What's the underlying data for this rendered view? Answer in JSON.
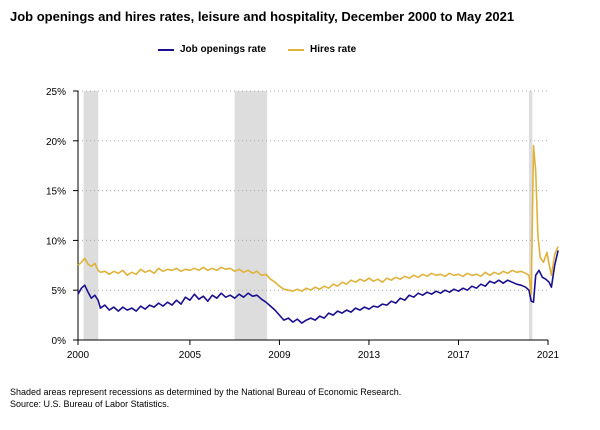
{
  "colors": {
    "job_openings": "#1a0f8f",
    "hires": "#e0b23c",
    "recession": "#dddddd",
    "grid": "#aaaaaa",
    "axis": "#000000"
  },
  "footnotes": {
    "line1": "Shaded areas represent recessions as determined by the National Bureau of Economic Research.",
    "line2": "Source: U.S. Bureau of Labor Statistics."
  },
  "chart_data": {
    "type": "line",
    "title": "Job openings and hires rates, leisure and hospitality, December 2000 to May 2021",
    "xlabel": "",
    "ylabel": "",
    "xlim": [
      2000,
      2021
    ],
    "ylim": [
      0,
      25
    ],
    "x_ticks": [
      2000,
      2005,
      2009,
      2013,
      2017,
      2021
    ],
    "y_ticks": [
      0,
      5,
      10,
      15,
      20,
      25
    ],
    "y_tick_labels": [
      "0%",
      "5%",
      "10%",
      "15%",
      "20%",
      "25%"
    ],
    "grid": "horizontal dotted",
    "legend": "top-center",
    "recessions": [
      [
        2000.25,
        2000.9
      ],
      [
        2007.0,
        2008.45
      ],
      [
        2020.15,
        2020.3
      ]
    ],
    "series": [
      {
        "name": "Job openings rate",
        "color": "#1a0f8f",
        "points": [
          [
            2000.0,
            4.6
          ],
          [
            2000.15,
            5.2
          ],
          [
            2000.3,
            5.5
          ],
          [
            2000.45,
            4.8
          ],
          [
            2000.6,
            4.2
          ],
          [
            2000.75,
            4.5
          ],
          [
            2000.9,
            4.0
          ],
          [
            2001.0,
            3.2
          ],
          [
            2001.2,
            3.5
          ],
          [
            2001.4,
            3.0
          ],
          [
            2001.6,
            3.3
          ],
          [
            2001.8,
            2.9
          ],
          [
            2002.0,
            3.3
          ],
          [
            2002.2,
            3.0
          ],
          [
            2002.4,
            3.2
          ],
          [
            2002.6,
            2.9
          ],
          [
            2002.8,
            3.4
          ],
          [
            2003.0,
            3.1
          ],
          [
            2003.2,
            3.5
          ],
          [
            2003.4,
            3.3
          ],
          [
            2003.6,
            3.7
          ],
          [
            2003.8,
            3.4
          ],
          [
            2004.0,
            3.8
          ],
          [
            2004.2,
            3.5
          ],
          [
            2004.4,
            4.0
          ],
          [
            2004.6,
            3.6
          ],
          [
            2004.8,
            4.3
          ],
          [
            2005.0,
            4.0
          ],
          [
            2005.2,
            4.6
          ],
          [
            2005.4,
            4.1
          ],
          [
            2005.6,
            4.4
          ],
          [
            2005.8,
            3.9
          ],
          [
            2006.0,
            4.5
          ],
          [
            2006.2,
            4.2
          ],
          [
            2006.4,
            4.7
          ],
          [
            2006.6,
            4.3
          ],
          [
            2006.8,
            4.5
          ],
          [
            2007.0,
            4.2
          ],
          [
            2007.2,
            4.6
          ],
          [
            2007.4,
            4.3
          ],
          [
            2007.6,
            4.7
          ],
          [
            2007.8,
            4.4
          ],
          [
            2008.0,
            4.5
          ],
          [
            2008.2,
            4.1
          ],
          [
            2008.4,
            3.8
          ],
          [
            2008.6,
            3.4
          ],
          [
            2008.8,
            3.0
          ],
          [
            2009.0,
            2.5
          ],
          [
            2009.2,
            2.0
          ],
          [
            2009.4,
            2.2
          ],
          [
            2009.6,
            1.8
          ],
          [
            2009.8,
            2.1
          ],
          [
            2010.0,
            1.7
          ],
          [
            2010.2,
            2.0
          ],
          [
            2010.4,
            2.2
          ],
          [
            2010.6,
            2.0
          ],
          [
            2010.8,
            2.4
          ],
          [
            2011.0,
            2.2
          ],
          [
            2011.2,
            2.7
          ],
          [
            2011.4,
            2.5
          ],
          [
            2011.6,
            2.9
          ],
          [
            2011.8,
            2.7
          ],
          [
            2012.0,
            3.0
          ],
          [
            2012.2,
            2.8
          ],
          [
            2012.4,
            3.2
          ],
          [
            2012.6,
            3.0
          ],
          [
            2012.8,
            3.3
          ],
          [
            2013.0,
            3.1
          ],
          [
            2013.2,
            3.4
          ],
          [
            2013.4,
            3.3
          ],
          [
            2013.6,
            3.6
          ],
          [
            2013.8,
            3.5
          ],
          [
            2014.0,
            3.9
          ],
          [
            2014.2,
            3.7
          ],
          [
            2014.4,
            4.2
          ],
          [
            2014.6,
            4.0
          ],
          [
            2014.8,
            4.5
          ],
          [
            2015.0,
            4.3
          ],
          [
            2015.2,
            4.7
          ],
          [
            2015.4,
            4.5
          ],
          [
            2015.6,
            4.8
          ],
          [
            2015.8,
            4.6
          ],
          [
            2016.0,
            4.9
          ],
          [
            2016.2,
            4.7
          ],
          [
            2016.4,
            5.0
          ],
          [
            2016.6,
            4.8
          ],
          [
            2016.8,
            5.1
          ],
          [
            2017.0,
            4.9
          ],
          [
            2017.2,
            5.2
          ],
          [
            2017.4,
            5.0
          ],
          [
            2017.6,
            5.4
          ],
          [
            2017.8,
            5.2
          ],
          [
            2018.0,
            5.6
          ],
          [
            2018.2,
            5.4
          ],
          [
            2018.4,
            5.9
          ],
          [
            2018.6,
            5.7
          ],
          [
            2018.8,
            6.0
          ],
          [
            2019.0,
            5.7
          ],
          [
            2019.2,
            6.0
          ],
          [
            2019.4,
            5.8
          ],
          [
            2019.6,
            5.6
          ],
          [
            2019.8,
            5.5
          ],
          [
            2020.0,
            5.3
          ],
          [
            2020.15,
            5.0
          ],
          [
            2020.25,
            3.9
          ],
          [
            2020.35,
            3.8
          ],
          [
            2020.45,
            6.5
          ],
          [
            2020.6,
            7.0
          ],
          [
            2020.75,
            6.3
          ],
          [
            2020.9,
            6.1
          ],
          [
            2021.05,
            5.8
          ],
          [
            2021.15,
            5.3
          ],
          [
            2021.3,
            7.5
          ],
          [
            2021.45,
            9.0
          ]
        ]
      },
      {
        "name": "Hires rate",
        "color": "#e0b23c",
        "points": [
          [
            2000.0,
            7.5
          ],
          [
            2000.15,
            7.8
          ],
          [
            2000.3,
            8.2
          ],
          [
            2000.45,
            7.6
          ],
          [
            2000.6,
            7.4
          ],
          [
            2000.75,
            7.7
          ],
          [
            2000.9,
            7.0
          ],
          [
            2001.0,
            6.8
          ],
          [
            2001.2,
            6.9
          ],
          [
            2001.4,
            6.6
          ],
          [
            2001.6,
            6.9
          ],
          [
            2001.8,
            6.7
          ],
          [
            2002.0,
            7.0
          ],
          [
            2002.2,
            6.5
          ],
          [
            2002.4,
            6.8
          ],
          [
            2002.6,
            6.6
          ],
          [
            2002.8,
            7.1
          ],
          [
            2003.0,
            6.8
          ],
          [
            2003.2,
            7.0
          ],
          [
            2003.4,
            6.7
          ],
          [
            2003.6,
            7.2
          ],
          [
            2003.8,
            6.9
          ],
          [
            2004.0,
            7.1
          ],
          [
            2004.2,
            7.0
          ],
          [
            2004.4,
            7.2
          ],
          [
            2004.6,
            6.9
          ],
          [
            2004.8,
            7.1
          ],
          [
            2005.0,
            7.0
          ],
          [
            2005.2,
            7.2
          ],
          [
            2005.4,
            7.0
          ],
          [
            2005.6,
            7.3
          ],
          [
            2005.8,
            7.0
          ],
          [
            2006.0,
            7.2
          ],
          [
            2006.2,
            7.0
          ],
          [
            2006.4,
            7.3
          ],
          [
            2006.6,
            7.1
          ],
          [
            2006.8,
            7.2
          ],
          [
            2007.0,
            6.9
          ],
          [
            2007.2,
            7.1
          ],
          [
            2007.4,
            6.8
          ],
          [
            2007.6,
            7.0
          ],
          [
            2007.8,
            6.7
          ],
          [
            2008.0,
            6.9
          ],
          [
            2008.2,
            6.5
          ],
          [
            2008.4,
            6.6
          ],
          [
            2008.6,
            6.1
          ],
          [
            2008.8,
            5.8
          ],
          [
            2009.0,
            5.4
          ],
          [
            2009.2,
            5.1
          ],
          [
            2009.4,
            5.0
          ],
          [
            2009.6,
            4.9
          ],
          [
            2009.8,
            5.1
          ],
          [
            2010.0,
            4.9
          ],
          [
            2010.2,
            5.2
          ],
          [
            2010.4,
            5.0
          ],
          [
            2010.6,
            5.3
          ],
          [
            2010.8,
            5.1
          ],
          [
            2011.0,
            5.4
          ],
          [
            2011.2,
            5.2
          ],
          [
            2011.4,
            5.6
          ],
          [
            2011.6,
            5.4
          ],
          [
            2011.8,
            5.8
          ],
          [
            2012.0,
            5.6
          ],
          [
            2012.2,
            6.0
          ],
          [
            2012.4,
            5.8
          ],
          [
            2012.6,
            6.1
          ],
          [
            2012.8,
            5.9
          ],
          [
            2013.0,
            6.2
          ],
          [
            2013.2,
            5.9
          ],
          [
            2013.4,
            6.1
          ],
          [
            2013.6,
            5.8
          ],
          [
            2013.8,
            6.2
          ],
          [
            2014.0,
            6.0
          ],
          [
            2014.2,
            6.3
          ],
          [
            2014.4,
            6.1
          ],
          [
            2014.6,
            6.4
          ],
          [
            2014.8,
            6.2
          ],
          [
            2015.0,
            6.5
          ],
          [
            2015.2,
            6.3
          ],
          [
            2015.4,
            6.6
          ],
          [
            2015.6,
            6.4
          ],
          [
            2015.8,
            6.7
          ],
          [
            2016.0,
            6.5
          ],
          [
            2016.2,
            6.6
          ],
          [
            2016.4,
            6.4
          ],
          [
            2016.6,
            6.7
          ],
          [
            2016.8,
            6.5
          ],
          [
            2017.0,
            6.6
          ],
          [
            2017.2,
            6.4
          ],
          [
            2017.4,
            6.7
          ],
          [
            2017.6,
            6.5
          ],
          [
            2017.8,
            6.6
          ],
          [
            2018.0,
            6.4
          ],
          [
            2018.2,
            6.8
          ],
          [
            2018.4,
            6.5
          ],
          [
            2018.6,
            6.8
          ],
          [
            2018.8,
            6.6
          ],
          [
            2019.0,
            6.9
          ],
          [
            2019.2,
            6.7
          ],
          [
            2019.4,
            7.0
          ],
          [
            2019.6,
            6.8
          ],
          [
            2019.8,
            6.9
          ],
          [
            2020.0,
            6.7
          ],
          [
            2020.15,
            6.5
          ],
          [
            2020.25,
            4.6
          ],
          [
            2020.35,
            19.5
          ],
          [
            2020.45,
            17.0
          ],
          [
            2020.55,
            10.5
          ],
          [
            2020.65,
            8.3
          ],
          [
            2020.8,
            7.8
          ],
          [
            2020.95,
            8.8
          ],
          [
            2021.05,
            7.6
          ],
          [
            2021.15,
            6.5
          ],
          [
            2021.3,
            8.6
          ],
          [
            2021.45,
            9.4
          ]
        ]
      }
    ]
  }
}
